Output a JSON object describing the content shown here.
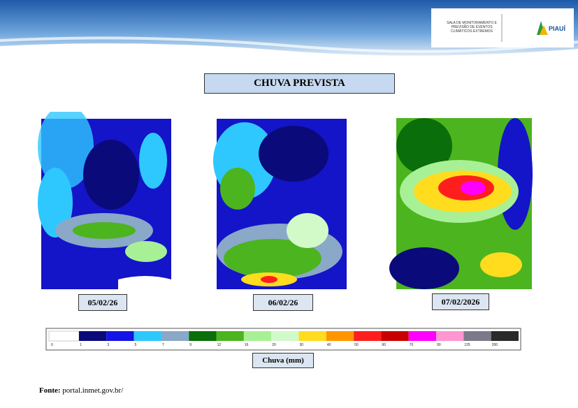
{
  "header": {
    "logo_lines": [
      "SALA DE MONITORAMENTO E",
      "PREVISÃO DE EVENTOS",
      "CLIMÁTICOS EXTREMOS"
    ],
    "state": "PIAUÍ"
  },
  "title": "CHUVA PREVISTA",
  "maps": [
    {
      "date": "05/02/26"
    },
    {
      "date": "06/02/26"
    },
    {
      "date": "07/02/2026"
    }
  ],
  "legend": {
    "label": "Chuva (mm)",
    "ticks": [
      "0",
      "1",
      "3",
      "5",
      "7",
      "9",
      "12",
      "16",
      "20",
      "30",
      "40",
      "50",
      "60",
      "70",
      "90",
      "125",
      "200"
    ],
    "colors": [
      "#ffffff",
      "#0a0a7a",
      "#1414e6",
      "#2ec8ff",
      "#8aa8c8",
      "#0a6e0a",
      "#4cb41e",
      "#a8f096",
      "#d2fac8",
      "#ffdc1e",
      "#ff9600",
      "#ff1e1e",
      "#c80000",
      "#ff00ff",
      "#ff96d2",
      "#7a7a8a",
      "#2a2a2a"
    ]
  },
  "source": {
    "label": "Fonte:",
    "text": "portal.inmet.gov.br/"
  }
}
